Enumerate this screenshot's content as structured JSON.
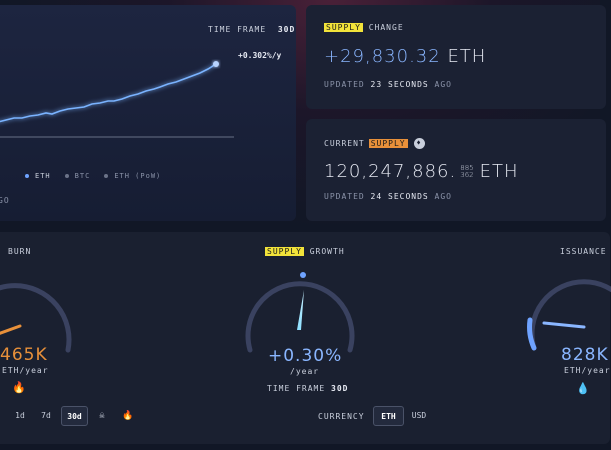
{
  "chart_card": {
    "timeframe_label": "TIME FRAME",
    "timeframe_value": "30d",
    "growth_label": "+0.302%/y",
    "legend": [
      {
        "label": "ETH",
        "color": "#6fa3ff"
      },
      {
        "label": "BTC",
        "color": "#6b7388"
      },
      {
        "label": "ETH (PoW)",
        "color": "#6b7388"
      }
    ],
    "footer_fragment": "GO"
  },
  "supply_change": {
    "label_highlight": "SUPPLY",
    "label_rest": "CHANGE",
    "value": "+29,830.32",
    "unit": "ETH",
    "updated_prefix": "UPDATED",
    "updated_time": "23 SECONDS",
    "updated_suffix": "AGO"
  },
  "current_supply": {
    "label_prefix": "CURRENT",
    "label_highlight": "SUPPLY",
    "value_main": "120,247,886.",
    "value_decimals_top": "885",
    "value_decimals_bottom": "362",
    "unit": "ETH",
    "updated_prefix": "UPDATED",
    "updated_time": "24 SECONDS",
    "updated_suffix": "AGO"
  },
  "gauges": {
    "burn": {
      "title": "BURN",
      "value": "465K",
      "unit": "ETH/year",
      "color": "#e8903a"
    },
    "supply_growth": {
      "title_highlight": "SUPPLY",
      "title_rest": "GROWTH",
      "value": "+0.30%",
      "unit": "/year",
      "color": "#6fa3ff"
    },
    "issuance": {
      "title": "ISSUANCE",
      "value": "828K",
      "unit": "ETH/year",
      "color": "#6fa3ff"
    }
  },
  "controls": {
    "timeframe_options": [
      "1d",
      "7d",
      "30d"
    ],
    "timeframe_selected": "30d",
    "timeframe_label": "TIME FRAME",
    "timeframe_value": "30d",
    "currency_label": "CURRENCY",
    "currency_options": [
      "ETH",
      "USD"
    ],
    "currency_selected": "ETH"
  },
  "colors": {
    "accent_blue": "#6fa3ff",
    "accent_orange": "#e8903a",
    "highlight_yellow": "#f2e33a"
  }
}
